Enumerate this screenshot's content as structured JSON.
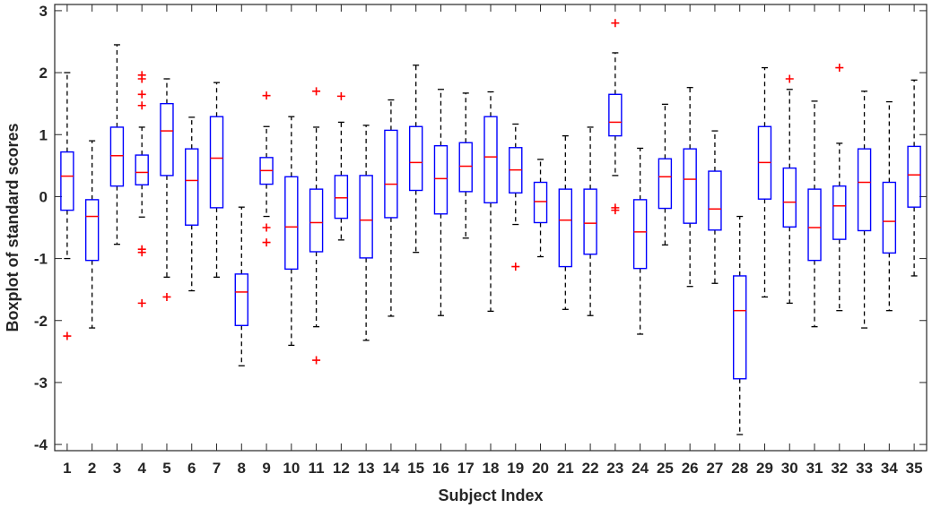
{
  "chart_data": {
    "type": "boxplot",
    "title": "",
    "xlabel": "Subject Index",
    "ylabel": "Boxplot of standard scores",
    "ylim": [
      -4.1,
      3.1
    ],
    "yticks": [
      -4,
      -3,
      -2,
      -1,
      0,
      1,
      2,
      3
    ],
    "grid": false,
    "colors": {
      "box": "#0000ff",
      "median": "#ff0000",
      "outlier": "#ff0000",
      "whisker": "#000000",
      "axis": "#262626"
    },
    "categories": [
      "1",
      "2",
      "3",
      "4",
      "5",
      "6",
      "7",
      "8",
      "9",
      "10",
      "11",
      "12",
      "13",
      "14",
      "15",
      "16",
      "17",
      "18",
      "19",
      "20",
      "21",
      "22",
      "23",
      "24",
      "25",
      "26",
      "27",
      "28",
      "29",
      "30",
      "31",
      "32",
      "33",
      "34",
      "35"
    ],
    "boxes": [
      {
        "q1": -0.22,
        "median": 0.33,
        "q3": 0.72,
        "whisker_low": -1.0,
        "whisker_high": 2.0,
        "outliers": [
          -2.25
        ]
      },
      {
        "q1": -1.03,
        "median": -0.32,
        "q3": -0.05,
        "whisker_low": -2.12,
        "whisker_high": 0.9,
        "outliers": []
      },
      {
        "q1": 0.17,
        "median": 0.66,
        "q3": 1.12,
        "whisker_low": -0.77,
        "whisker_high": 2.45,
        "outliers": []
      },
      {
        "q1": 0.19,
        "median": 0.39,
        "q3": 0.67,
        "whisker_low": -0.33,
        "whisker_high": 1.12,
        "outliers": [
          1.96,
          1.9,
          1.65,
          1.47,
          -0.85,
          -0.9,
          -1.72
        ]
      },
      {
        "q1": 0.34,
        "median": 1.06,
        "q3": 1.5,
        "whisker_low": -1.3,
        "whisker_high": 1.9,
        "outliers": [
          -1.62
        ]
      },
      {
        "q1": -0.46,
        "median": 0.26,
        "q3": 0.77,
        "whisker_low": -1.52,
        "whisker_high": 1.28,
        "outliers": []
      },
      {
        "q1": -0.18,
        "median": 0.62,
        "q3": 1.29,
        "whisker_low": -1.3,
        "whisker_high": 1.84,
        "outliers": []
      },
      {
        "q1": -2.08,
        "median": -1.54,
        "q3": -1.25,
        "whisker_low": -2.73,
        "whisker_high": -0.17,
        "outliers": []
      },
      {
        "q1": 0.2,
        "median": 0.42,
        "q3": 0.63,
        "whisker_low": -0.32,
        "whisker_high": 1.13,
        "outliers": [
          1.63,
          -0.5,
          -0.74
        ]
      },
      {
        "q1": -1.17,
        "median": -0.49,
        "q3": 0.32,
        "whisker_low": -2.4,
        "whisker_high": 1.29,
        "outliers": []
      },
      {
        "q1": -0.89,
        "median": -0.42,
        "q3": 0.12,
        "whisker_low": -2.1,
        "whisker_high": 1.12,
        "outliers": [
          1.7,
          -2.64
        ]
      },
      {
        "q1": -0.35,
        "median": -0.02,
        "q3": 0.34,
        "whisker_low": -0.7,
        "whisker_high": 1.2,
        "outliers": [
          1.62
        ]
      },
      {
        "q1": -0.99,
        "median": -0.38,
        "q3": 0.34,
        "whisker_low": -2.32,
        "whisker_high": 1.15,
        "outliers": []
      },
      {
        "q1": -0.34,
        "median": 0.2,
        "q3": 1.07,
        "whisker_low": -1.93,
        "whisker_high": 1.56,
        "outliers": []
      },
      {
        "q1": 0.1,
        "median": 0.55,
        "q3": 1.13,
        "whisker_low": -0.9,
        "whisker_high": 2.12,
        "outliers": []
      },
      {
        "q1": -0.28,
        "median": 0.29,
        "q3": 0.82,
        "whisker_low": -1.92,
        "whisker_high": 1.73,
        "outliers": []
      },
      {
        "q1": 0.08,
        "median": 0.49,
        "q3": 0.87,
        "whisker_low": -0.67,
        "whisker_high": 1.67,
        "outliers": []
      },
      {
        "q1": -0.1,
        "median": 0.64,
        "q3": 1.29,
        "whisker_low": -1.85,
        "whisker_high": 1.69,
        "outliers": []
      },
      {
        "q1": 0.06,
        "median": 0.43,
        "q3": 0.79,
        "whisker_low": -0.45,
        "whisker_high": 1.17,
        "outliers": [
          -1.13
        ]
      },
      {
        "q1": -0.42,
        "median": -0.08,
        "q3": 0.23,
        "whisker_low": -0.97,
        "whisker_high": 0.6,
        "outliers": []
      },
      {
        "q1": -1.13,
        "median": -0.38,
        "q3": 0.12,
        "whisker_low": -1.82,
        "whisker_high": 0.98,
        "outliers": []
      },
      {
        "q1": -0.93,
        "median": -0.43,
        "q3": 0.12,
        "whisker_low": -1.92,
        "whisker_high": 1.12,
        "outliers": []
      },
      {
        "q1": 0.98,
        "median": 1.2,
        "q3": 1.65,
        "whisker_low": 0.34,
        "whisker_high": 2.32,
        "outliers": [
          2.8,
          -0.18,
          -0.22
        ]
      },
      {
        "q1": -1.16,
        "median": -0.57,
        "q3": -0.05,
        "whisker_low": -2.22,
        "whisker_high": 0.78,
        "outliers": []
      },
      {
        "q1": -0.19,
        "median": 0.32,
        "q3": 0.61,
        "whisker_low": -0.78,
        "whisker_high": 1.49,
        "outliers": []
      },
      {
        "q1": -0.43,
        "median": 0.28,
        "q3": 0.77,
        "whisker_low": -1.45,
        "whisker_high": 1.76,
        "outliers": []
      },
      {
        "q1": -0.54,
        "median": -0.2,
        "q3": 0.41,
        "whisker_low": -1.4,
        "whisker_high": 1.06,
        "outliers": []
      },
      {
        "q1": -2.94,
        "median": -1.84,
        "q3": -1.28,
        "whisker_low": -3.84,
        "whisker_high": -0.32,
        "outliers": []
      },
      {
        "q1": -0.04,
        "median": 0.55,
        "q3": 1.13,
        "whisker_low": -1.62,
        "whisker_high": 2.08,
        "outliers": []
      },
      {
        "q1": -0.49,
        "median": -0.09,
        "q3": 0.46,
        "whisker_low": -1.72,
        "whisker_high": 1.73,
        "outliers": [
          1.9
        ]
      },
      {
        "q1": -1.03,
        "median": -0.5,
        "q3": 0.12,
        "whisker_low": -2.1,
        "whisker_high": 1.54,
        "outliers": []
      },
      {
        "q1": -0.69,
        "median": -0.15,
        "q3": 0.17,
        "whisker_low": -1.84,
        "whisker_high": 0.86,
        "outliers": [
          2.08
        ]
      },
      {
        "q1": -0.55,
        "median": 0.23,
        "q3": 0.77,
        "whisker_low": -2.12,
        "whisker_high": 1.7,
        "outliers": []
      },
      {
        "q1": -0.91,
        "median": -0.4,
        "q3": 0.23,
        "whisker_low": -1.84,
        "whisker_high": 1.53,
        "outliers": []
      },
      {
        "q1": -0.17,
        "median": 0.35,
        "q3": 0.81,
        "whisker_low": -1.28,
        "whisker_high": 1.88,
        "outliers": []
      }
    ]
  }
}
